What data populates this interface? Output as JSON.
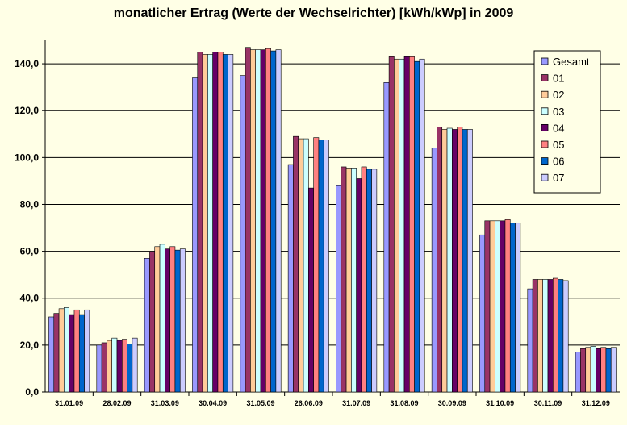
{
  "chart_data": {
    "type": "bar",
    "title": "monatlicher Ertrag (Werte der Wechselrichter) [kWh/kWp] in 2009",
    "xlabel": "",
    "ylabel": "",
    "ylim": [
      0,
      150
    ],
    "yticks": [
      "0,0",
      "20,0",
      "40,0",
      "60,0",
      "80,0",
      "100,0",
      "120,0",
      "140,0"
    ],
    "grid": "horizontal",
    "legend_position": "top-right",
    "categories": [
      "31.01.09",
      "28.02.09",
      "31.03.09",
      "30.04.09",
      "31.05.09",
      "26.06.09",
      "31.07.09",
      "31.08.09",
      "30.09.09",
      "31.10.09",
      "30.11.09",
      "31.12.09"
    ],
    "series": [
      {
        "name": "Gesamt",
        "color": "#9999FF",
        "values": [
          32,
          20,
          57,
          134,
          135,
          97,
          88,
          132,
          104,
          67,
          44,
          17
        ]
      },
      {
        "name": "01",
        "color": "#993366",
        "values": [
          33.5,
          21,
          60,
          145,
          147,
          109,
          96,
          143,
          113,
          73,
          48,
          18.5
        ]
      },
      {
        "name": "02",
        "color": "#FFCC99",
        "values": [
          35.5,
          22,
          62,
          144,
          146,
          108,
          95.5,
          142,
          112,
          73,
          48,
          19
        ]
      },
      {
        "name": "03",
        "color": "#CCFFFF",
        "values": [
          36,
          23,
          63,
          144,
          146,
          108,
          95.5,
          142,
          112.5,
          73,
          48,
          19.5
        ]
      },
      {
        "name": "04",
        "color": "#660066",
        "values": [
          33,
          22,
          61,
          145,
          146,
          87,
          91,
          143,
          112,
          73,
          48,
          18.5
        ]
      },
      {
        "name": "05",
        "color": "#FF8080",
        "values": [
          35,
          22.5,
          62,
          145,
          146.5,
          108.5,
          96,
          143,
          113,
          73.5,
          48.5,
          19
        ]
      },
      {
        "name": "06",
        "color": "#0066CC",
        "values": [
          33,
          20.5,
          60.5,
          144,
          145.5,
          107.5,
          95,
          141,
          112,
          72,
          48,
          18.5
        ]
      },
      {
        "name": "07",
        "color": "#CCCCFF",
        "values": [
          35,
          23,
          61,
          144,
          146,
          107.5,
          95,
          142,
          112,
          72,
          47.5,
          19
        ]
      }
    ]
  }
}
